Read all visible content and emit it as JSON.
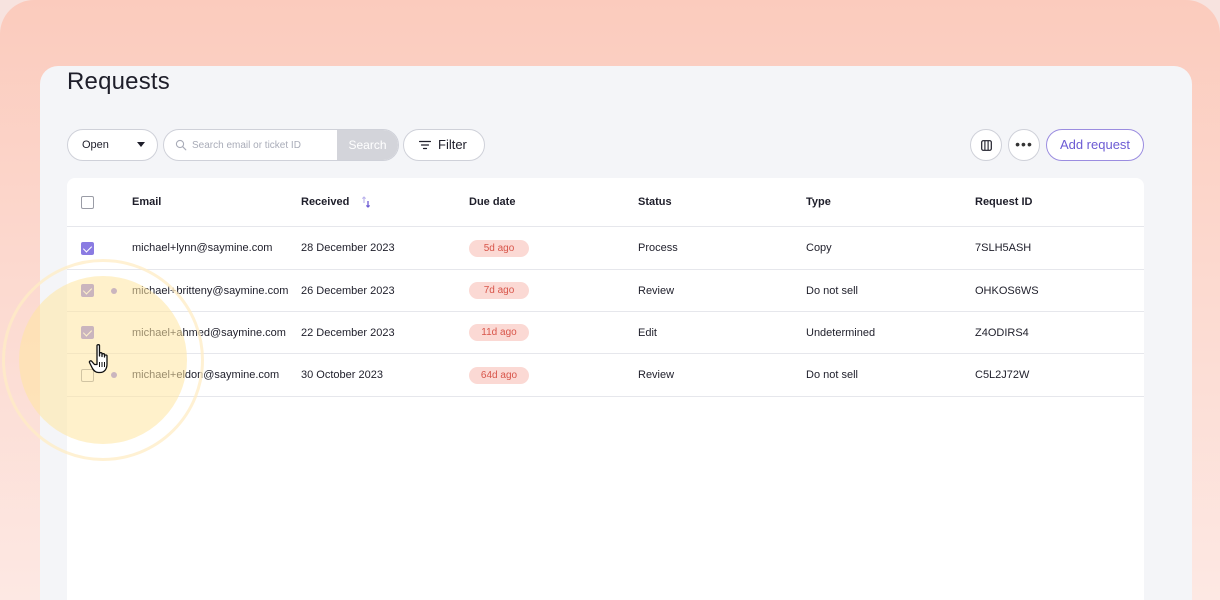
{
  "page": {
    "title": "Requests"
  },
  "toolbar": {
    "status_select_value": "Open",
    "search_placeholder": "Search email or ticket ID",
    "search_button_label": "Search",
    "filter_label": "Filter",
    "more_label": "•••",
    "add_request_label": "Add request"
  },
  "table": {
    "headers": {
      "email": "Email",
      "received": "Received",
      "due_date": "Due date",
      "status": "Status",
      "type": "Type",
      "request_id": "Request ID"
    },
    "rows": [
      {
        "checked": true,
        "unread": false,
        "email": "michael+lynn@saymine.com",
        "received": "28 December 2023",
        "due": "5d ago",
        "status": "Process",
        "type": "Copy",
        "request_id": "7SLH5ASH"
      },
      {
        "checked": true,
        "unread": true,
        "email": "michael+britteny@saymine.com",
        "received": "26 December 2023",
        "due": "7d ago",
        "status": "Review",
        "type": "Do not sell",
        "request_id": "OHKOS6WS"
      },
      {
        "checked": true,
        "unread": false,
        "email": "michael+ahmed@saymine.com",
        "received": "22 December 2023",
        "due": "11d ago",
        "status": "Edit",
        "type": "Undetermined",
        "request_id": "Z4ODIRS4"
      },
      {
        "checked": false,
        "unread": true,
        "email": "michael+eldon@saymine.com",
        "received": "30 October 2023",
        "due": "64d ago",
        "status": "Review",
        "type": "Do not sell",
        "request_id": "C5L2J72W"
      }
    ]
  },
  "colors": {
    "accent": "#8a7be2",
    "overdue_badge_bg": "#fbd9d4",
    "overdue_badge_text": "#d8554a"
  },
  "icons": {
    "search": "search-icon",
    "filter": "filter-icon",
    "columns": "columns-icon",
    "more": "more-icon",
    "sort": "sort-icon",
    "cursor": "hand-pointer-icon"
  }
}
